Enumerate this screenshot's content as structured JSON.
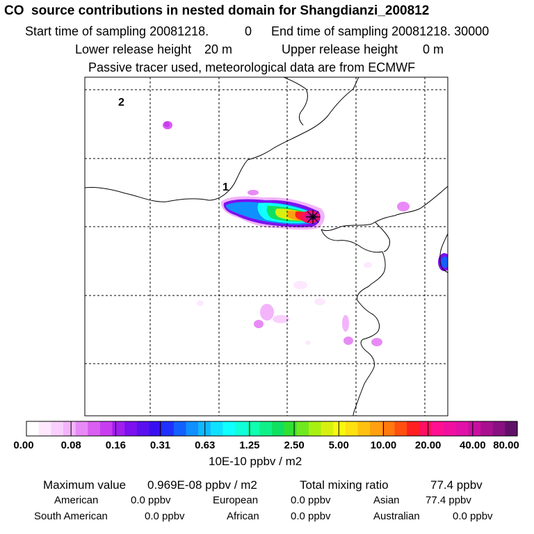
{
  "header": {
    "title": "CO  source contributions in nested domain for Shangdianzi_200812",
    "start_label": "Start time of sampling 20081218.",
    "start_hhmmss": "0",
    "end_label": "End time of sampling 20081218. 30000",
    "lower_label": "Lower release height",
    "lower_value": "20 m",
    "upper_label": "Upper release height",
    "upper_value": "0 m",
    "tracer_note": "Passive tracer used, meteorological data are from ECMWF"
  },
  "chart_data": {
    "type": "heatmap",
    "map_labels": [
      "1",
      "2"
    ],
    "colorbar": {
      "ticks": [
        "0.00",
        "0.08",
        "0.16",
        "0.31",
        "0.63",
        "1.25",
        "2.50",
        "5.00",
        "10.00",
        "20.00",
        "40.00",
        "80.00"
      ],
      "unit": "10E-10 ppbv / m2",
      "colors": [
        "#ffffff",
        "#fde8fe",
        "#f9d0fd",
        "#f3b4fb",
        "#e88af6",
        "#d95ef2",
        "#c83cf0",
        "#a01eee",
        "#7c10ee",
        "#5a10ee",
        "#3810f0",
        "#2030ff",
        "#1460ff",
        "#1090ff",
        "#10b8ff",
        "#10e0ff",
        "#10ffff",
        "#10ffd8",
        "#10ffb0",
        "#10f088",
        "#10e060",
        "#30e030",
        "#70e820",
        "#a8f010",
        "#d8f010",
        "#f8f810",
        "#ffe010",
        "#ffc010",
        "#ffa010",
        "#ff7810",
        "#ff5010",
        "#ff2020",
        "#ff1060",
        "#ff1090",
        "#f010a0",
        "#e010a8",
        "#c810a0",
        "#a81090",
        "#881080",
        "#601068"
      ]
    }
  },
  "stats": {
    "max_label": "Maximum value",
    "max_value": "0.969E-08 ppbv / m2",
    "total_label": "Total mixing ratio",
    "total_value": "77.4 ppbv",
    "regions": [
      {
        "name": "American",
        "value": "0.0 ppbv"
      },
      {
        "name": "European",
        "value": "0.0 ppbv"
      },
      {
        "name": "Asian",
        "value": "77.4 ppbv"
      },
      {
        "name": "South American",
        "value": "0.0 ppbv"
      },
      {
        "name": "African",
        "value": "0.0 ppbv"
      },
      {
        "name": "Australian",
        "value": "0.0 ppbv"
      }
    ]
  }
}
